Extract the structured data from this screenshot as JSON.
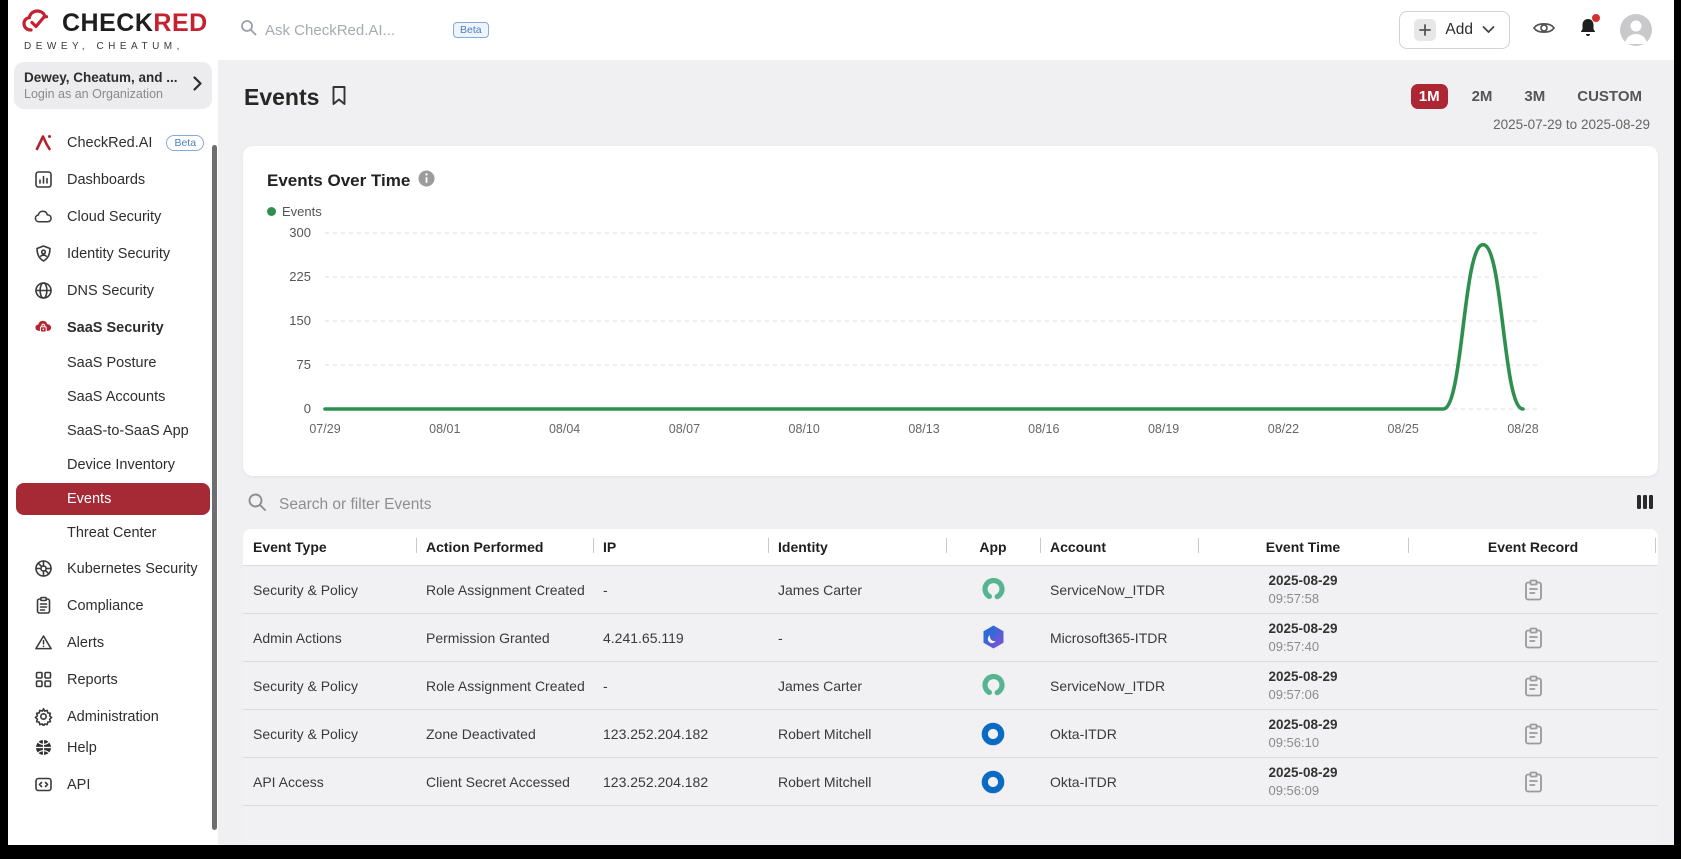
{
  "colors": {
    "brand_red": "#c5212f",
    "active_red": "#a62a35",
    "range_red": "#ac2733",
    "chart_green": "#2f8f4f",
    "okta_blue": "#0b6bc2",
    "servicenow_green": "#57b492",
    "microsoft_blue": "#1272d4",
    "microsoft_purple": "#8352d6",
    "beta_blue": "#4d7fc4"
  },
  "topbar": {
    "logo": {
      "check": "CHECK",
      "red": "RED",
      "tagline": "DEWEY, CHEATUM,"
    },
    "search_placeholder": "Ask CheckRed.AI...",
    "beta_label": "Beta",
    "add_label": "Add"
  },
  "org_selector": {
    "name": "Dewey, Cheatum, and ...",
    "subtitle": "Login as an Organization"
  },
  "sidebar": {
    "items": [
      {
        "label": "CheckRed.AI",
        "icon": "checkred-ai-icon",
        "badge": "Beta"
      },
      {
        "label": "Dashboards",
        "icon": "dashboards-icon"
      },
      {
        "label": "Cloud Security",
        "icon": "cloud-security-icon"
      },
      {
        "label": "Identity Security",
        "icon": "identity-security-icon"
      },
      {
        "label": "DNS Security",
        "icon": "dns-security-icon"
      },
      {
        "label": "SaaS Security",
        "icon": "saas-security-icon",
        "bold": true
      },
      {
        "label": "SaaS Posture",
        "sub": true
      },
      {
        "label": "SaaS Accounts",
        "sub": true
      },
      {
        "label": "SaaS-to-SaaS App",
        "sub": true
      },
      {
        "label": "Device Inventory",
        "sub": true
      },
      {
        "label": "Events",
        "sub": true,
        "active": true
      },
      {
        "label": "Threat Center",
        "sub": true
      },
      {
        "label": "Kubernetes Security",
        "icon": "kubernetes-security-icon"
      },
      {
        "label": "Compliance",
        "icon": "compliance-icon"
      },
      {
        "label": "Alerts",
        "icon": "alerts-icon"
      },
      {
        "label": "Reports",
        "icon": "reports-icon"
      },
      {
        "label": "Administration",
        "icon": "administration-icon"
      },
      {
        "label": "Help",
        "icon": "help-icon",
        "tight": true
      },
      {
        "label": "API",
        "icon": "api-icon"
      }
    ]
  },
  "page": {
    "title": "Events",
    "range_options": [
      "1M",
      "2M",
      "3M",
      "CUSTOM"
    ],
    "active_range": "1M",
    "date_range": "2025-07-29 to 2025-08-29"
  },
  "chart_data": {
    "type": "line",
    "title": "Events Over Time",
    "legend": [
      "Events"
    ],
    "legend_position": "top-left",
    "grid": "dashed-horizontal",
    "ylim": [
      0,
      300
    ],
    "y_ticks": [
      0,
      75,
      150,
      225,
      300
    ],
    "x": [
      "07/29",
      "07/30",
      "07/31",
      "08/01",
      "08/02",
      "08/03",
      "08/04",
      "08/05",
      "08/06",
      "08/07",
      "08/08",
      "08/09",
      "08/10",
      "08/11",
      "08/12",
      "08/13",
      "08/14",
      "08/15",
      "08/16",
      "08/17",
      "08/18",
      "08/19",
      "08/20",
      "08/21",
      "08/22",
      "08/23",
      "08/24",
      "08/25",
      "08/26",
      "08/27",
      "08/28"
    ],
    "x_tick_labels": [
      "07/29",
      "08/01",
      "08/04",
      "08/07",
      "08/10",
      "08/13",
      "08/16",
      "08/19",
      "08/22",
      "08/25",
      "08/28"
    ],
    "series": [
      {
        "name": "Events",
        "color": "#2f8f4f",
        "values": [
          0,
          0,
          0,
          0,
          0,
          0,
          0,
          0,
          0,
          0,
          0,
          0,
          0,
          0,
          0,
          0,
          0,
          0,
          0,
          0,
          0,
          0,
          0,
          0,
          0,
          0,
          0,
          0,
          0,
          280,
          0
        ]
      }
    ]
  },
  "table": {
    "search_placeholder": "Search or filter Events",
    "columns": [
      {
        "label": "Event Type",
        "align": "left"
      },
      {
        "label": "Action Performed",
        "align": "left"
      },
      {
        "label": "IP",
        "align": "left"
      },
      {
        "label": "Identity",
        "align": "left"
      },
      {
        "label": "App",
        "align": "center"
      },
      {
        "label": "Account",
        "align": "left"
      },
      {
        "label": "Event Time",
        "align": "center"
      },
      {
        "label": "Event Record",
        "align": "center"
      }
    ],
    "rows": [
      {
        "event_type": "Security & Policy",
        "action": "Role Assignment Created",
        "ip": "-",
        "identity": "James Carter",
        "app": "servicenow",
        "account": "ServiceNow_ITDR",
        "date": "2025-08-29",
        "time": "09:57:58"
      },
      {
        "event_type": "Admin Actions",
        "action": "Permission Granted",
        "ip": "4.241.65.119",
        "identity": "-",
        "app": "microsoft365",
        "account": "Microsoft365-ITDR",
        "date": "2025-08-29",
        "time": "09:57:40"
      },
      {
        "event_type": "Security & Policy",
        "action": "Role Assignment Created",
        "ip": "-",
        "identity": "James Carter",
        "app": "servicenow",
        "account": "ServiceNow_ITDR",
        "date": "2025-08-29",
        "time": "09:57:06"
      },
      {
        "event_type": "Security & Policy",
        "action": "Zone Deactivated",
        "ip": "123.252.204.182",
        "identity": "Robert Mitchell",
        "app": "okta",
        "account": "Okta-ITDR",
        "date": "2025-08-29",
        "time": "09:56:10"
      },
      {
        "event_type": "API Access",
        "action": "Client Secret Accessed",
        "ip": "123.252.204.182",
        "identity": "Robert Mitchell",
        "app": "okta",
        "account": "Okta-ITDR",
        "date": "2025-08-29",
        "time": "09:56:09"
      }
    ]
  }
}
